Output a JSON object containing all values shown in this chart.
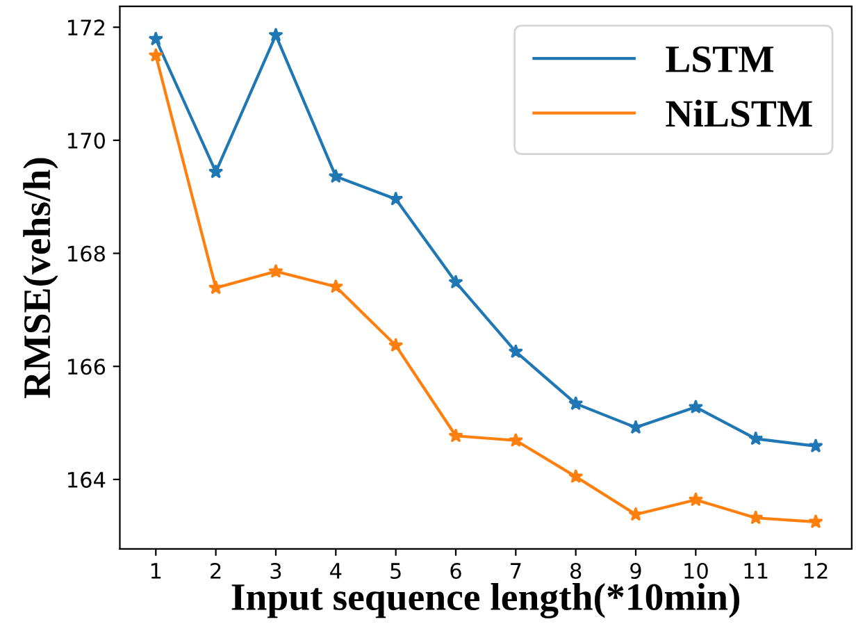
{
  "chart_data": {
    "type": "line",
    "xlabel": "Input sequence length(*10min)",
    "ylabel": "RMSE(vehs/h)",
    "x": [
      1,
      2,
      3,
      4,
      5,
      6,
      7,
      8,
      9,
      10,
      11,
      12
    ],
    "series": [
      {
        "name": "LSTM",
        "color": "#1f77b4",
        "values": [
          171.79,
          169.44,
          171.86,
          169.36,
          168.96,
          167.49,
          166.26,
          165.34,
          164.92,
          165.28,
          164.72,
          164.59
        ]
      },
      {
        "name": "NiLSTM",
        "color": "#ff7f0e",
        "values": [
          171.5,
          167.39,
          167.68,
          167.41,
          166.37,
          164.77,
          164.69,
          164.05,
          163.38,
          163.64,
          163.32,
          163.25
        ]
      }
    ],
    "xlim": [
      0.4,
      12.6
    ],
    "ylim": [
      162.77,
      172.37
    ],
    "xticks": [
      1,
      2,
      3,
      4,
      5,
      6,
      7,
      8,
      9,
      10,
      11,
      12
    ],
    "yticks": [
      164,
      166,
      168,
      170,
      172
    ],
    "grid": false,
    "legend": "top right",
    "marker": "star",
    "line_style": "solid"
  }
}
